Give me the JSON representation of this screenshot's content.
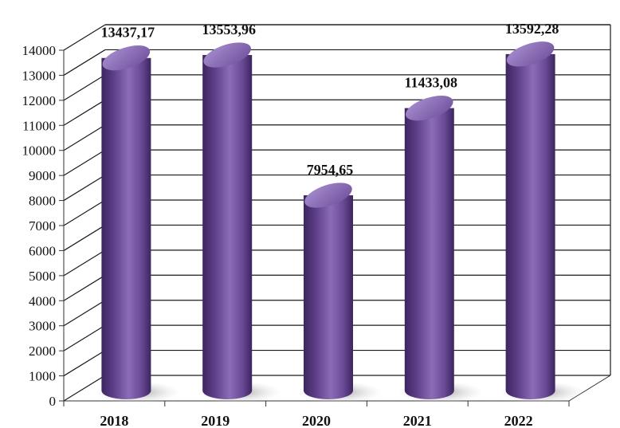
{
  "chart_data": {
    "type": "bar",
    "categories": [
      "2018",
      "2019",
      "2020",
      "2021",
      "2022"
    ],
    "values": [
      13437.17,
      13553.96,
      7954.65,
      11433.08,
      13592.28
    ],
    "data_labels": [
      "13437,17",
      "13553,96",
      "7954,65",
      "11433,08",
      "13592,28"
    ],
    "title": "",
    "xlabel": "",
    "ylabel": "",
    "ylim": [
      0,
      14000
    ],
    "yticks": [
      "0",
      "1000",
      "2000",
      "3000",
      "4000",
      "5000",
      "6000",
      "7000",
      "8000",
      "9000",
      "10000",
      "11000",
      "12000",
      "13000",
      "14000"
    ],
    "grid": true,
    "style": "3d-cylinder",
    "colors": {
      "bar_dark": "#3d2560",
      "bar_mid": "#6a4a96",
      "bar_light": "#8c6cb6",
      "bar_top": "#9a7ec4",
      "shadow": "#bdbdbd"
    }
  }
}
